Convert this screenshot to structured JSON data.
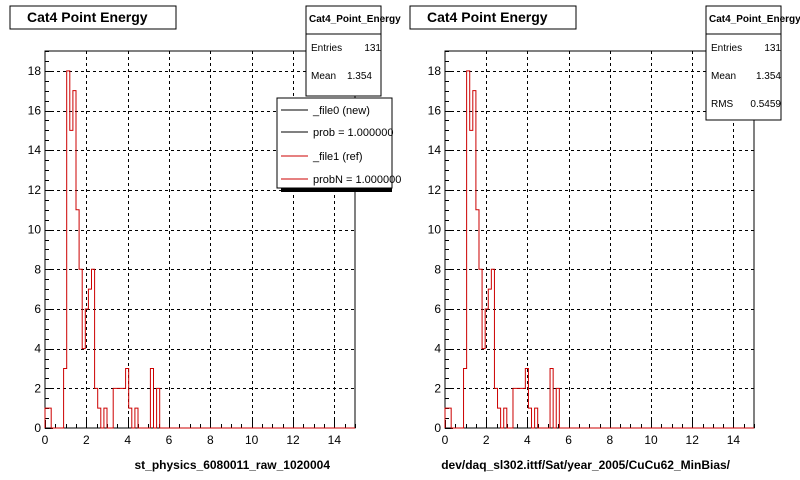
{
  "colors": {
    "new": "#000000",
    "ref": "#cc0000",
    "grid": "#000000",
    "legend_shadow": "#000000"
  },
  "chart_data": [
    {
      "type": "bar",
      "title": "Cat4 Point Energy",
      "xlabel": "st_physics_6080011_raw_1020004",
      "xlim": [
        0,
        15
      ],
      "ylim": [
        0,
        19
      ],
      "xticks": [
        0,
        2,
        4,
        6,
        8,
        10,
        12,
        14
      ],
      "yticks": [
        0,
        2,
        4,
        6,
        8,
        10,
        12,
        14,
        16,
        18
      ],
      "stats": {
        "name": "Cat4_Point_Energy",
        "rows": [
          {
            "label": "Entries",
            "value": "131"
          },
          {
            "label": "Mean",
            "value": "1.354"
          }
        ]
      },
      "legend": [
        {
          "label": "_file0 (new)",
          "color": "#000000"
        },
        {
          "label": "prob = 1.000000",
          "color": "#000000"
        },
        {
          "label": "_file1 (ref)",
          "color": "#cc0000"
        },
        {
          "label": "probN = 1.000000",
          "color": "#cc0000"
        }
      ],
      "series": [
        {
          "bin_width": 0.15,
          "x_start": 0,
          "values": [
            1,
            1,
            0,
            0,
            0,
            0,
            3,
            18,
            15,
            17,
            11,
            8,
            4,
            6,
            7,
            8,
            2,
            1,
            0,
            1,
            0,
            0,
            2,
            2,
            2,
            2,
            3,
            1,
            0,
            1,
            0,
            0,
            0,
            0,
            3,
            0,
            2,
            0,
            0,
            0,
            0,
            0,
            0,
            0,
            0,
            0,
            0,
            0,
            0,
            0,
            0,
            0,
            0,
            0,
            0,
            0,
            0,
            0,
            0,
            0,
            0,
            0,
            0,
            0,
            0,
            0,
            0,
            0,
            0,
            0,
            0,
            0,
            0,
            0,
            0,
            0,
            0,
            0,
            0,
            0,
            0,
            0,
            0,
            0,
            0,
            0,
            0,
            0,
            0,
            0,
            0,
            0,
            0,
            0,
            0,
            0,
            0,
            0,
            0,
            0
          ]
        }
      ]
    },
    {
      "type": "bar",
      "title": "Cat4 Point Energy",
      "xlabel": "dev/daq_sl302.ittf/Sat/year_2005/CuCu62_MinBias/",
      "xlim": [
        0,
        15
      ],
      "ylim": [
        0,
        19
      ],
      "xticks": [
        0,
        2,
        4,
        6,
        8,
        10,
        12,
        14
      ],
      "yticks": [
        0,
        2,
        4,
        6,
        8,
        10,
        12,
        14,
        16,
        18
      ],
      "stats": {
        "name": "Cat4_Point_Energy",
        "rows": [
          {
            "label": "Entries",
            "value": "131"
          },
          {
            "label": "Mean",
            "value": "1.354"
          },
          {
            "label": "RMS",
            "value": "0.5459"
          }
        ]
      },
      "series": [
        {
          "bin_width": 0.15,
          "x_start": 0,
          "values": [
            1,
            1,
            0,
            0,
            0,
            0,
            3,
            18,
            15,
            17,
            11,
            8,
            4,
            6,
            7,
            8,
            2,
            1,
            0,
            1,
            0,
            0,
            2,
            2,
            2,
            2,
            3,
            1,
            0,
            1,
            0,
            0,
            0,
            0,
            3,
            0,
            2,
            0,
            0,
            0,
            0,
            0,
            0,
            0,
            0,
            0,
            0,
            0,
            0,
            0,
            0,
            0,
            0,
            0,
            0,
            0,
            0,
            0,
            0,
            0,
            0,
            0,
            0,
            0,
            0,
            0,
            0,
            0,
            0,
            0,
            0,
            0,
            0,
            0,
            0,
            0,
            0,
            0,
            0,
            0,
            0,
            0,
            0,
            0,
            0,
            0,
            0,
            0,
            0,
            0,
            0,
            0,
            0,
            0,
            0,
            0,
            0,
            0,
            0,
            0
          ]
        }
      ]
    }
  ]
}
